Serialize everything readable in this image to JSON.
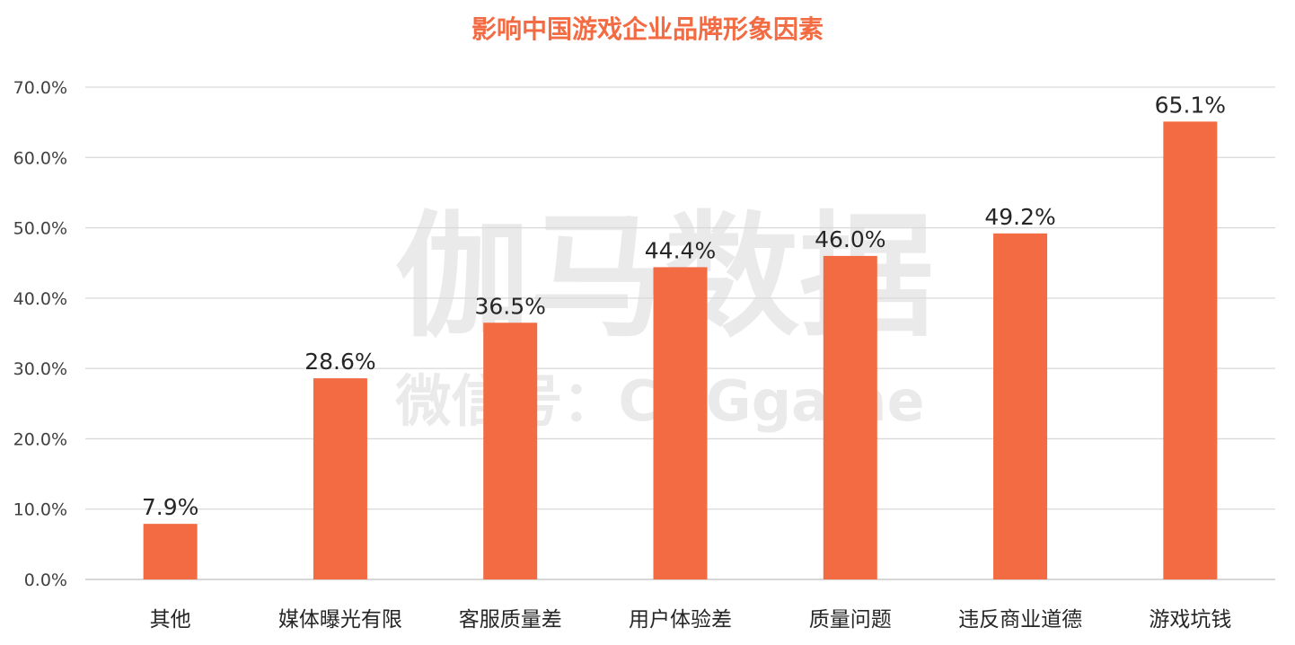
{
  "watermark": {
    "main": "伽马数据",
    "sub": "微信号：CNGgame"
  },
  "colors": {
    "title": "#f26b43",
    "bar": "#f26b43",
    "grid": "#d9d9d9",
    "axis": "#bfbfbf"
  },
  "chart_data": {
    "type": "bar",
    "title": "影响中国游戏企业品牌形象因素",
    "xlabel": "",
    "ylabel": "",
    "categories": [
      "其他",
      "媒体曝光有限",
      "客服质量差",
      "用户体验差",
      "质量问题",
      "违反商业道德",
      "游戏坑钱"
    ],
    "values": [
      7.9,
      28.6,
      36.5,
      44.4,
      46.0,
      49.2,
      65.1
    ],
    "data_labels": [
      "7.9%",
      "28.6%",
      "36.5%",
      "44.4%",
      "46.0%",
      "49.2%",
      "65.1%"
    ],
    "ylim": [
      0,
      70
    ],
    "yticks": [
      "0.0%",
      "10.0%",
      "20.0%",
      "30.0%",
      "40.0%",
      "50.0%",
      "60.0%",
      "70.0%"
    ],
    "grid": true,
    "legend": "none"
  }
}
